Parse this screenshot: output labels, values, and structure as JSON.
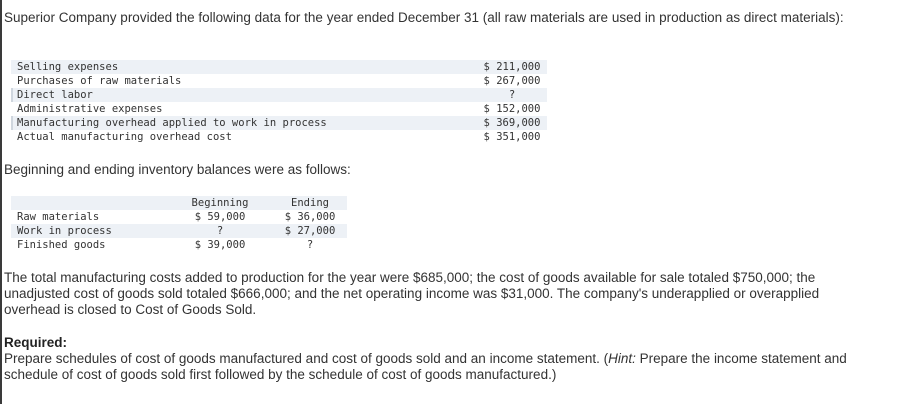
{
  "intro": "Superior Company provided the following data for the year ended December 31 (all raw materials are used in production as direct materials):",
  "table1": {
    "rows": [
      {
        "label": "Selling expenses",
        "value": "$ 211,000"
      },
      {
        "label": "Purchases of raw materials",
        "value": "$ 267,000"
      },
      {
        "label": "Direct labor",
        "value": "?"
      },
      {
        "label": "Administrative expenses",
        "value": "$ 152,000"
      },
      {
        "label": "Manufacturing overhead applied to work in process",
        "value": "$ 369,000"
      },
      {
        "label": "Actual manufacturing overhead cost",
        "value": "$ 351,000"
      }
    ]
  },
  "beginning_note": "Beginning and ending inventory balances were as follows:",
  "table2": {
    "headers": [
      "Beginning",
      "Ending"
    ],
    "rows": [
      {
        "label": "Raw materials",
        "beginning": "$ 59,000",
        "ending": "$ 36,000"
      },
      {
        "label": "Work in process",
        "beginning": "?",
        "ending": "$ 27,000"
      },
      {
        "label": "Finished goods",
        "beginning": "$ 39,000",
        "ending": "?"
      }
    ]
  },
  "summary": "The total manufacturing costs added to production for the year were $685,000; the cost of goods available for sale totaled $750,000; the unadjusted cost of goods sold totaled $666,000; and the net operating income was $31,000. The company's underapplied or overapplied overhead is closed to Cost of Goods Sold.",
  "required": {
    "heading": "Required:",
    "text_before_hint": "Prepare schedules of cost of goods manufactured and cost of goods sold and an income statement. (",
    "hint_label": "Hint:",
    "text_after_hint": " Prepare the income statement and schedule of cost of goods sold first followed by the schedule of cost of goods manufactured.)"
  }
}
